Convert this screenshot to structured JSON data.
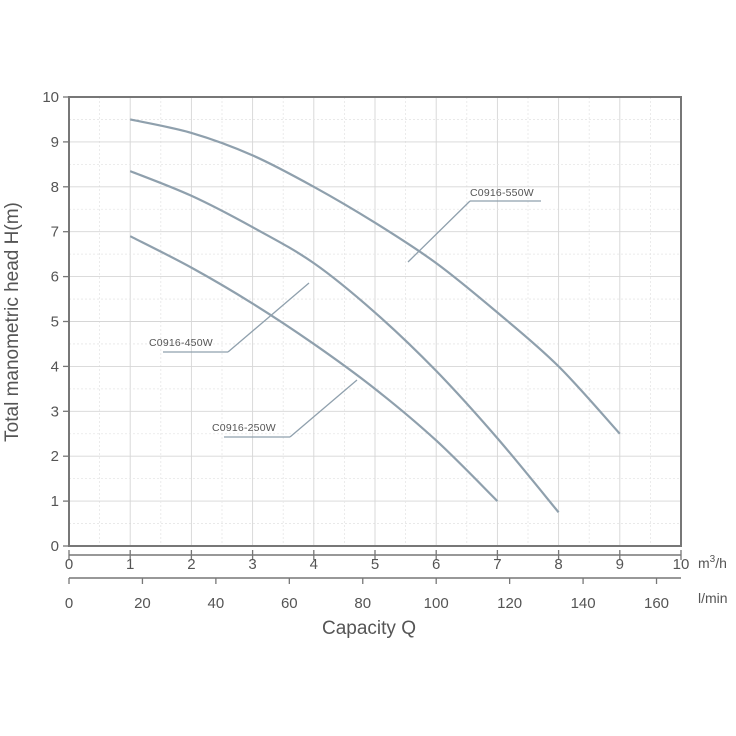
{
  "chart_data": {
    "type": "line",
    "ylabel": "Total manometric head H(m)",
    "xlabel": "Capacity Q",
    "x_unit_primary": "m³/h",
    "x_unit_secondary": "l/min",
    "xlim": [
      0,
      10
    ],
    "ylim": [
      0,
      10
    ],
    "x_ticks": [
      "0",
      "1",
      "2",
      "3",
      "4",
      "5",
      "6",
      "7",
      "8",
      "9",
      "10"
    ],
    "y_ticks": [
      "0",
      "1",
      "2",
      "3",
      "4",
      "5",
      "6",
      "7",
      "8",
      "9",
      "10"
    ],
    "x2_ticks": [
      "0",
      "20",
      "40",
      "60",
      "80",
      "100",
      "120",
      "140",
      "160"
    ],
    "grid": true,
    "series": [
      {
        "name": "C0916-550W",
        "x": [
          1,
          2,
          3,
          4,
          5,
          6,
          7,
          8,
          9
        ],
        "y": [
          9.5,
          9.2,
          8.7,
          8.0,
          7.2,
          6.3,
          5.2,
          4.0,
          2.5
        ]
      },
      {
        "name": "C0916-450W",
        "x": [
          1,
          2,
          3,
          4,
          5,
          6,
          7,
          8
        ],
        "y": [
          8.35,
          7.8,
          7.1,
          6.3,
          5.2,
          3.9,
          2.4,
          0.75
        ]
      },
      {
        "name": "C0916-250W",
        "x": [
          1,
          2,
          3,
          4,
          5,
          6,
          7
        ],
        "y": [
          6.9,
          6.2,
          5.4,
          4.5,
          3.5,
          2.35,
          1.0
        ]
      }
    ]
  }
}
